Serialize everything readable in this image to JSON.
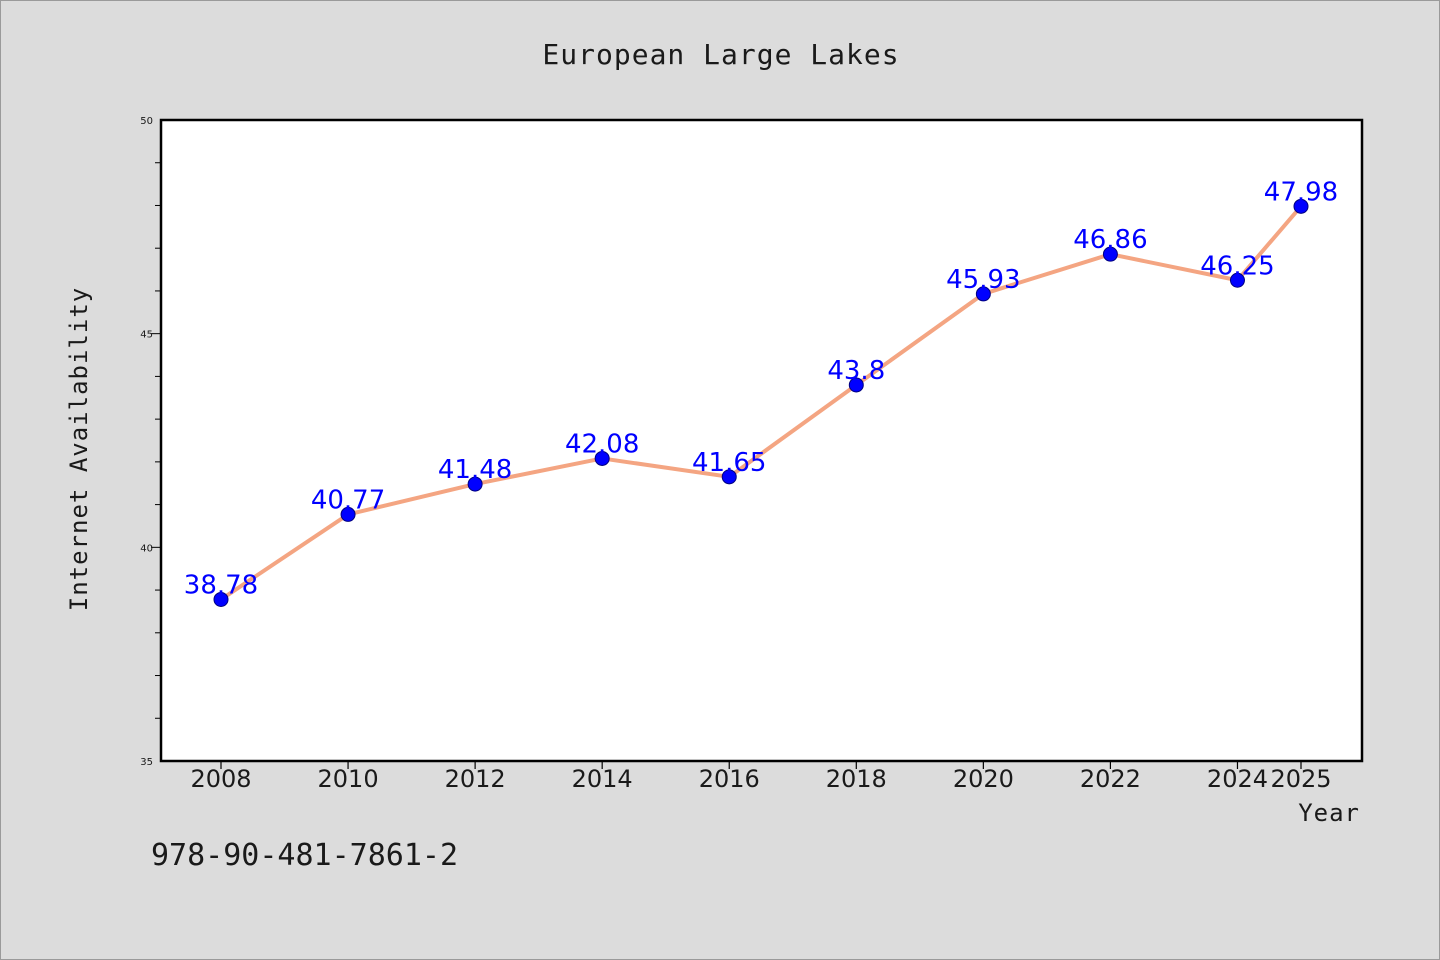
{
  "colors": {
    "background": "#dcdcdc",
    "plot_background": "#ffffff",
    "line": "#f4a582",
    "marker": "#0000ff",
    "data_label": "#0000ff",
    "axis": "#000000"
  },
  "footnote": "978-90-481-7861-2",
  "chart_data": {
    "type": "line",
    "title": "European Large Lakes",
    "xlabel": "Year",
    "ylabel": "Internet Availability",
    "x": [
      "2008",
      "2010",
      "2012",
      "2014",
      "2016",
      "2018",
      "2020",
      "2022",
      "2024",
      "2025"
    ],
    "series": [
      {
        "values": [
          38.78,
          40.77,
          41.48,
          42.08,
          41.65,
          43.8,
          45.93,
          46.86,
          46.25,
          47.98
        ],
        "labels": [
          "38.78",
          "40.77",
          "41.48",
          "42.08",
          "41.65",
          "43.8",
          "45.93",
          "46.86",
          "46.25",
          "47.98"
        ]
      }
    ],
    "ylim": [
      35,
      50
    ],
    "yticks": [
      "35",
      "40",
      "45",
      "50"
    ],
    "grid": false,
    "legend": "none"
  }
}
